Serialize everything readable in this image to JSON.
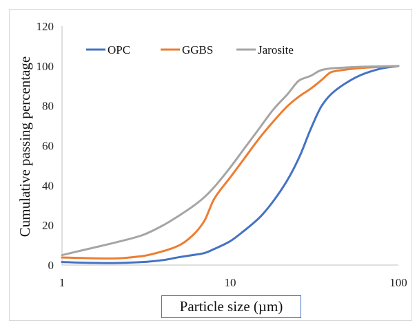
{
  "chart_data": {
    "type": "line",
    "title": "",
    "xlabel": "Particle size (µm)",
    "ylabel": "Cumulative passing percentage",
    "x_scale": "log",
    "xlim": [
      1,
      100
    ],
    "ylim": [
      0,
      120
    ],
    "x_ticks": [
      1,
      10,
      100
    ],
    "x_tick_labels": [
      "1",
      "10",
      "100"
    ],
    "y_ticks": [
      0,
      20,
      40,
      60,
      80,
      100,
      120
    ],
    "y_tick_labels": [
      "0",
      "20",
      "40",
      "60",
      "80",
      "100",
      "120"
    ],
    "grid": false,
    "legend_position": "top-left",
    "series": [
      {
        "name": "OPC",
        "color": "#4472C4",
        "points": [
          [
            1,
            1.5
          ],
          [
            1.5,
            1.1
          ],
          [
            2,
            1.0
          ],
          [
            3,
            1.5
          ],
          [
            4,
            2.5
          ],
          [
            5,
            4
          ],
          [
            6,
            5
          ],
          [
            7,
            6
          ],
          [
            8,
            8
          ],
          [
            10,
            12
          ],
          [
            12,
            17
          ],
          [
            15,
            24
          ],
          [
            18,
            32
          ],
          [
            22,
            43
          ],
          [
            26,
            55
          ],
          [
            30,
            68
          ],
          [
            35,
            80
          ],
          [
            40,
            86
          ],
          [
            50,
            92
          ],
          [
            60,
            95.5
          ],
          [
            70,
            97.5
          ],
          [
            80,
            98.8
          ],
          [
            100,
            100
          ]
        ]
      },
      {
        "name": "GGBS",
        "color": "#ED7D31",
        "points": [
          [
            1,
            3.8
          ],
          [
            1.5,
            3.4
          ],
          [
            2,
            3.3
          ],
          [
            3,
            4.5
          ],
          [
            4,
            7
          ],
          [
            5,
            10
          ],
          [
            6,
            15
          ],
          [
            7,
            22
          ],
          [
            8,
            33
          ],
          [
            10,
            44
          ],
          [
            12,
            53
          ],
          [
            15,
            64
          ],
          [
            18,
            72
          ],
          [
            22,
            80
          ],
          [
            26,
            85
          ],
          [
            30,
            88.5
          ],
          [
            35,
            93
          ],
          [
            40,
            97
          ],
          [
            50,
            98.3
          ],
          [
            60,
            99
          ],
          [
            80,
            99.6
          ],
          [
            100,
            100
          ]
        ]
      },
      {
        "name": "Jarosite",
        "color": "#A5A5A5",
        "points": [
          [
            1,
            5
          ],
          [
            1.5,
            8.5
          ],
          [
            2,
            11
          ],
          [
            3,
            15
          ],
          [
            4,
            20
          ],
          [
            5,
            25
          ],
          [
            6,
            29.5
          ],
          [
            7,
            34
          ],
          [
            8,
            39
          ],
          [
            10,
            49
          ],
          [
            12,
            58
          ],
          [
            15,
            69
          ],
          [
            18,
            78
          ],
          [
            22,
            86
          ],
          [
            26,
            93
          ],
          [
            30,
            95
          ],
          [
            35,
            98
          ],
          [
            40,
            98.8
          ],
          [
            50,
            99.3
          ],
          [
            60,
            99.6
          ],
          [
            80,
            99.8
          ],
          [
            100,
            100
          ]
        ]
      }
    ]
  }
}
